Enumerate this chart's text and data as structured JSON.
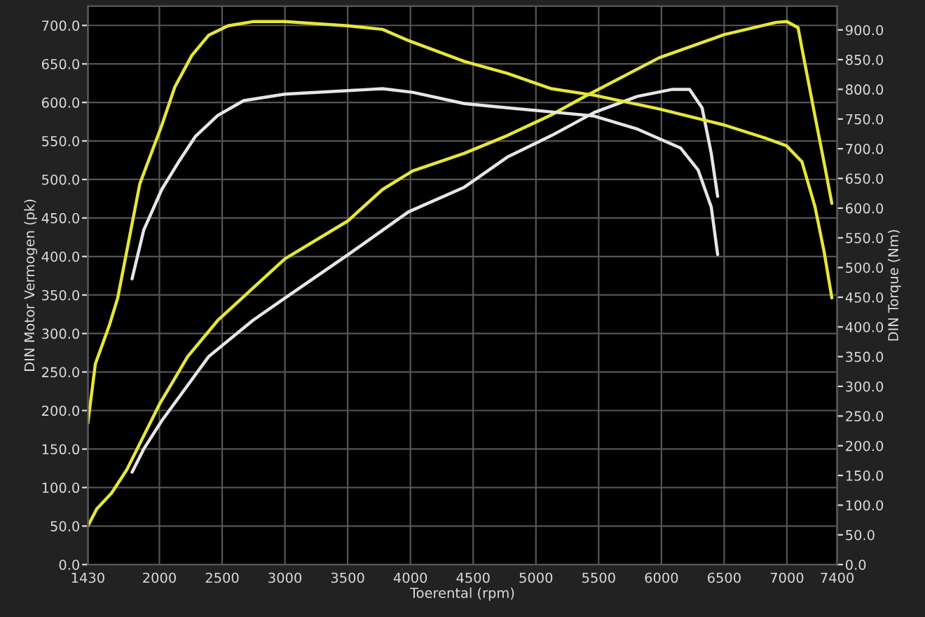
{
  "chart_data": {
    "type": "line",
    "xlabel": "Toerental (rpm)",
    "ylabel": "DIN Motor Vermogen (pk)",
    "y2label": "DIN Torque (Nm)",
    "xlim": [
      1430,
      7400
    ],
    "xticks": [
      1430,
      2000,
      2500,
      3000,
      3500,
      4000,
      4500,
      5000,
      5500,
      6000,
      6500,
      7000,
      7400
    ],
    "ylim": [
      0,
      725
    ],
    "yticks": [
      {
        "value": 0,
        "label": "0.0"
      },
      {
        "value": 50,
        "label": "50.0"
      },
      {
        "value": 100,
        "label": "100.0"
      },
      {
        "value": 150,
        "label": "150.0"
      },
      {
        "value": 200,
        "label": "200.0"
      },
      {
        "value": 250,
        "label": "250.0"
      },
      {
        "value": 300,
        "label": "300.0"
      },
      {
        "value": 350,
        "label": "350.0"
      },
      {
        "value": 400,
        "label": "400.0"
      },
      {
        "value": 450,
        "label": "450.0"
      },
      {
        "value": 500,
        "label": "500.0"
      },
      {
        "value": 550,
        "label": "550.0"
      },
      {
        "value": 600,
        "label": "600.0"
      },
      {
        "value": 650,
        "label": "650.0"
      },
      {
        "value": 700,
        "label": "700.0"
      }
    ],
    "y2lim": [
      0,
      940
    ],
    "y2ticks": [
      {
        "value": 0,
        "label": "0.0"
      },
      {
        "value": 50,
        "label": "50.0"
      },
      {
        "value": 100,
        "label": "100.0"
      },
      {
        "value": 150,
        "label": "150.0"
      },
      {
        "value": 200,
        "label": "200.0"
      },
      {
        "value": 250,
        "label": "250.0"
      },
      {
        "value": 300,
        "label": "300.0"
      },
      {
        "value": 350,
        "label": "350.0"
      },
      {
        "value": 400,
        "label": "400.0"
      },
      {
        "value": 450,
        "label": "450.0"
      },
      {
        "value": 500,
        "label": "500.0"
      },
      {
        "value": 550,
        "label": "550.0"
      },
      {
        "value": 600,
        "label": "600.0"
      },
      {
        "value": 650,
        "label": "650.0"
      },
      {
        "value": 700,
        "label": "700.0"
      },
      {
        "value": 750,
        "label": "750.0"
      },
      {
        "value": 800,
        "label": "800.0"
      },
      {
        "value": 850,
        "label": "850.0"
      },
      {
        "value": 900,
        "label": "900.0"
      }
    ],
    "grid": true,
    "marker": "none",
    "line_style": "solid",
    "legend": false,
    "series": [
      {
        "color": "#e6e63a",
        "x": [
          1430,
          1500,
          1620,
          1740,
          2000,
          2225,
          2465,
          3000,
          3500,
          3778,
          4017,
          4430,
          4772,
          5124,
          5393,
          5982,
          6500,
          6914,
          7000,
          7089,
          7120,
          7224,
          7296,
          7358
        ],
        "values": [
          50,
          72,
          93,
          123,
          208,
          270,
          317,
          397,
          446,
          487,
          511,
          534,
          557,
          584,
          608,
          658,
          688,
          704,
          705,
          697,
          670,
          582,
          522,
          469
        ]
      },
      {
        "color": "#e6e6e6",
        "x": [
          1782,
          1875,
          2020,
          2392,
          2744,
          3000,
          3500,
          3985,
          4430,
          4772,
          5124,
          5465,
          5810,
          6089,
          6224,
          6324,
          6397,
          6448
        ],
        "values": [
          120,
          150,
          187,
          270,
          317,
          346,
          402,
          458,
          490,
          529,
          557,
          587,
          608,
          617,
          617,
          593,
          534,
          478
        ]
      },
      {
        "color": "#e6e63a",
        "axis": "y2",
        "x": [
          1430,
          1490,
          1600,
          1668,
          1844,
          2020,
          2123,
          2258,
          2392,
          2547,
          2744,
          3000,
          3500,
          3778,
          3985,
          4430,
          4772,
          5124,
          5465,
          5982,
          6500,
          6840,
          6996,
          7120,
          7224,
          7296,
          7358
        ],
        "values": [
          238,
          338,
          402,
          449,
          641,
          740,
          804,
          857,
          891,
          907,
          914,
          914,
          907,
          901,
          882,
          847,
          827,
          801,
          790,
          767,
          740,
          717,
          705,
          678,
          602,
          527,
          449
        ]
      },
      {
        "color": "#e6e6e6",
        "axis": "y2",
        "x": [
          1782,
          1875,
          2020,
          2154,
          2288,
          2465,
          2672,
          3000,
          3778,
          4017,
          4430,
          4772,
          5124,
          5465,
          5810,
          6154,
          6293,
          6397,
          6448
        ],
        "values": [
          481,
          563,
          632,
          678,
          721,
          756,
          781,
          792,
          801,
          795,
          776,
          769,
          762,
          755,
          733,
          701,
          664,
          602,
          522
        ]
      }
    ]
  }
}
